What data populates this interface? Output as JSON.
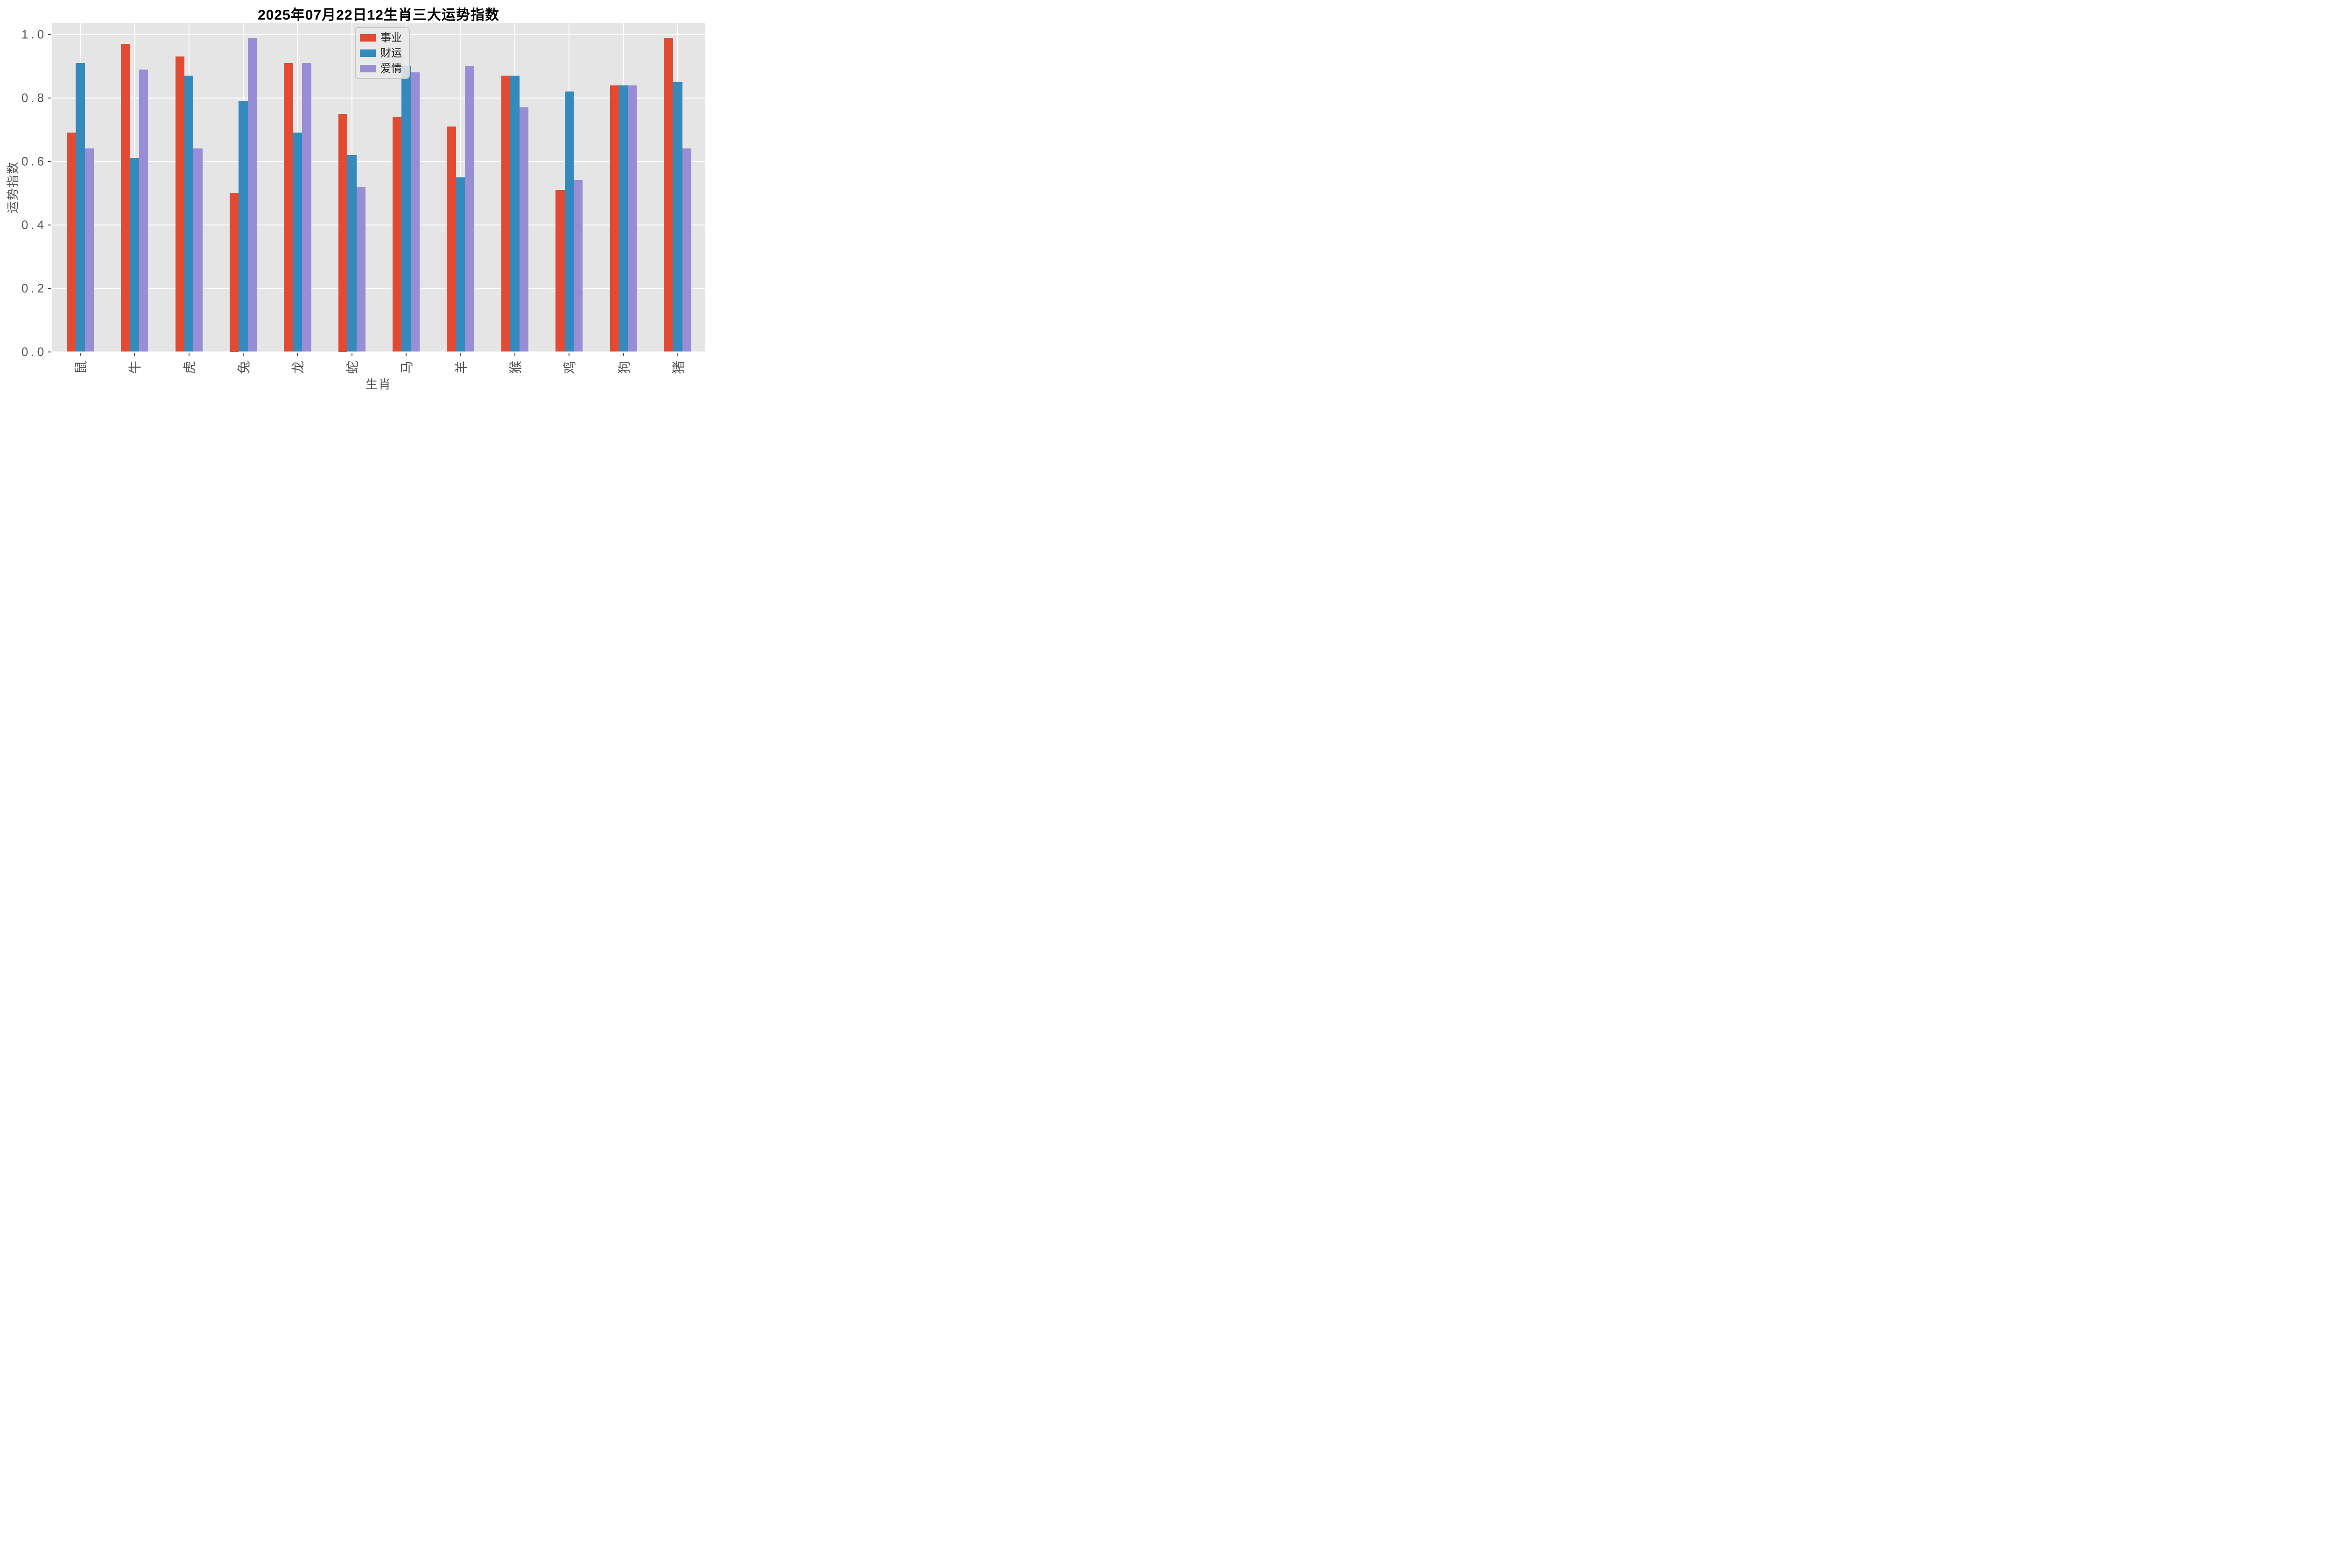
{
  "figure": {
    "background_color": "#FFFFFF",
    "axes_background_color": "#E5E5E5",
    "grid_color": "#FFFFFF",
    "tick_text_color": "#555555",
    "title_color": "#000000"
  },
  "chart_data": {
    "type": "bar",
    "title": "2025年07月22日12生肖三大运势指数",
    "xlabel": "生肖",
    "ylabel": "运势指数",
    "categories": [
      "鼠",
      "牛",
      "虎",
      "兔",
      "龙",
      "蛇",
      "马",
      "羊",
      "猴",
      "鸡",
      "狗",
      "猪"
    ],
    "series": [
      {
        "name": "事业",
        "color": "#E24A33",
        "values": [
          0.69,
          0.97,
          0.93,
          0.5,
          0.91,
          0.75,
          0.74,
          0.71,
          0.87,
          0.51,
          0.84,
          0.99
        ]
      },
      {
        "name": "财运",
        "color": "#348ABD",
        "values": [
          0.91,
          0.61,
          0.87,
          0.79,
          0.69,
          0.62,
          0.9,
          0.55,
          0.87,
          0.82,
          0.84,
          0.85
        ]
      },
      {
        "name": "爱情",
        "color": "#988ED5",
        "values": [
          0.64,
          0.89,
          0.64,
          0.99,
          0.91,
          0.52,
          0.88,
          0.9,
          0.77,
          0.54,
          0.84,
          0.64
        ]
      }
    ],
    "ylim": [
      0.0,
      1.04
    ],
    "yticks": [
      0.0,
      0.2,
      0.4,
      0.6,
      0.8,
      1.0
    ],
    "ytick_labels": [
      "0.0",
      "0.2",
      "0.4",
      "0.6",
      "0.8",
      "1.0"
    ],
    "grid": true,
    "legend_position": "upper center",
    "x_tick_label_rotation_deg": 90
  }
}
